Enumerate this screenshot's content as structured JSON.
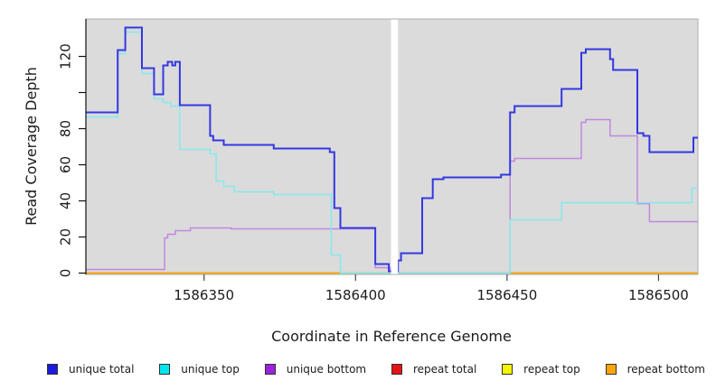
{
  "chart_data": {
    "type": "line",
    "step": "after",
    "title": "",
    "xlabel": "Coordinate in Reference Genome",
    "ylabel": "Read Coverage Depth",
    "xlim": [
      1586311,
      1586513
    ],
    "ylim": [
      0,
      140
    ],
    "x_ticks": [
      1586350,
      1586400,
      1586450,
      1586500
    ],
    "y_ticks": [
      0,
      20,
      40,
      60,
      80,
      100,
      120
    ],
    "y_tick_labels": [
      "0",
      "20",
      "40",
      "60",
      "80",
      "",
      "120"
    ],
    "grid": "off",
    "plot_background": "#DBDBDB",
    "plot_border_color": "#ACACAC",
    "legend_position": "bottom-horizontal",
    "gap_region": {
      "from": 1586411.7,
      "to": 1586414,
      "color": "#FFFFFF",
      "note": "white vertical band, no data"
    },
    "zero_overlap_segment": {
      "series": "unique top",
      "from": 1586395,
      "to": 1586451,
      "value": 0,
      "color": "#90D097",
      "note": "cyan line at zero blended over orange appears pale green"
    },
    "series": [
      {
        "name": "unique total",
        "color": "#1D1AE0",
        "line_color": "#3438E2",
        "line_width": 2,
        "points": [
          [
            1586311,
            89
          ],
          [
            1586321.5,
            123.5
          ],
          [
            1586324,
            136
          ],
          [
            1586329.5,
            113.5
          ],
          [
            1586333.5,
            99
          ],
          [
            1586336.5,
            115
          ],
          [
            1586338,
            117
          ],
          [
            1586339.5,
            115
          ],
          [
            1586340.5,
            117
          ],
          [
            1586342,
            93
          ],
          [
            1586352,
            76
          ],
          [
            1586353,
            73.5
          ],
          [
            1586356.5,
            71
          ],
          [
            1586373,
            69
          ],
          [
            1586391.5,
            67
          ],
          [
            1586393,
            36
          ],
          [
            1586395,
            25
          ],
          [
            1586406.5,
            5
          ],
          [
            1586411,
            1
          ],
          [
            1586414,
            7
          ],
          [
            1586415,
            11
          ],
          [
            1586422,
            41.5
          ],
          [
            1586425.5,
            52
          ],
          [
            1586429,
            53
          ],
          [
            1586448,
            54.5
          ],
          [
            1586451,
            89
          ],
          [
            1586452.5,
            92.5
          ],
          [
            1586468,
            102
          ],
          [
            1586474.5,
            122
          ],
          [
            1586476,
            124
          ],
          [
            1586484,
            118.5
          ],
          [
            1586485,
            112.5
          ],
          [
            1586493,
            77.5
          ],
          [
            1586495,
            76
          ],
          [
            1586497,
            67
          ],
          [
            1586511.5,
            75
          ]
        ]
      },
      {
        "name": "unique top",
        "color": "#00E6EE",
        "line_color": "#85E9EC",
        "line_width": 1.5,
        "points": [
          [
            1586311,
            86.5
          ],
          [
            1586321.5,
            121.5
          ],
          [
            1586324,
            133.5
          ],
          [
            1586329.5,
            110.5
          ],
          [
            1586333.5,
            96.5
          ],
          [
            1586336.5,
            94.5
          ],
          [
            1586339,
            92.5
          ],
          [
            1586342,
            68.5
          ],
          [
            1586352,
            66
          ],
          [
            1586354,
            51
          ],
          [
            1586356.5,
            48
          ],
          [
            1586360,
            45
          ],
          [
            1586373,
            43.5
          ],
          [
            1586392,
            10
          ],
          [
            1586395,
            0
          ],
          [
            1586451,
            29.5
          ],
          [
            1586468,
            39
          ],
          [
            1586511,
            47
          ]
        ]
      },
      {
        "name": "unique bottom",
        "color": "#9C22DD",
        "line_color": "#C287DF",
        "line_width": 1.5,
        "points": [
          [
            1586311,
            2
          ],
          [
            1586337,
            19.5
          ],
          [
            1586338,
            21.5
          ],
          [
            1586340.5,
            23.5
          ],
          [
            1586345.5,
            25
          ],
          [
            1586359,
            24.5
          ],
          [
            1586406.5,
            3
          ],
          [
            1586411.5,
            0
          ],
          [
            1586451,
            62
          ],
          [
            1586452.5,
            63.5
          ],
          [
            1586474.5,
            83.5
          ],
          [
            1586476,
            85
          ],
          [
            1586484,
            76
          ],
          [
            1586493,
            38.5
          ],
          [
            1586497,
            28.5
          ]
        ]
      },
      {
        "name": "repeat total",
        "color": "#E51414",
        "line_color": "#E51414",
        "line_width": 1.5,
        "points": [
          [
            1586311,
            0
          ]
        ]
      },
      {
        "name": "repeat top",
        "color": "#F5F500",
        "line_color": "#F5F500",
        "line_width": 1.5,
        "points": [
          [
            1586311,
            0
          ]
        ]
      },
      {
        "name": "repeat bottom",
        "color": "#FCA40C",
        "line_color": "#FCA40C",
        "line_width": 1.5,
        "points": [
          [
            1586311,
            0
          ]
        ]
      }
    ]
  }
}
